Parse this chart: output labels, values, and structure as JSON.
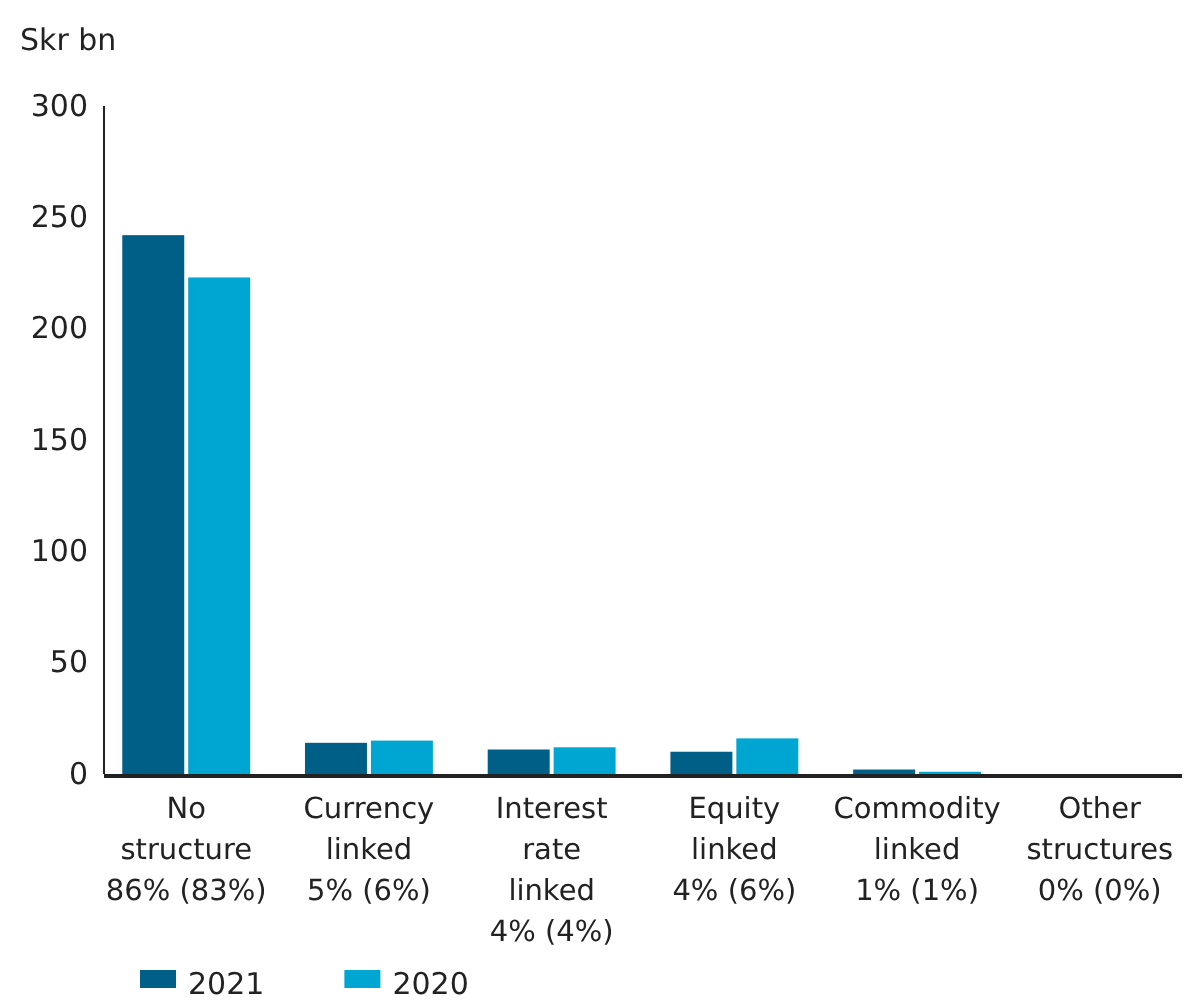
{
  "chart_data": {
    "type": "bar",
    "ylabel": "Skr bn",
    "categories": [
      "No\nstructure\n86% (83%)",
      "Currency\nlinked\n5% (6%)",
      "Interest\nrate\nlinked\n4% (4%)",
      "Equity\nlinked\n4% (6%)",
      "Commodity\nlinked\n1% (1%)",
      "Other\nstructures\n0% (0%)"
    ],
    "series": [
      {
        "name": "2021",
        "color": "#005f87",
        "values": [
          242,
          14,
          11,
          10,
          2,
          0
        ]
      },
      {
        "name": "2020",
        "color": "#00a6d2",
        "values": [
          223,
          15,
          12,
          16,
          1,
          0
        ]
      }
    ],
    "ylim": [
      0,
      300
    ],
    "yticks": [
      0,
      50,
      100,
      150,
      200,
      250,
      300
    ],
    "grid": false,
    "legend": "bottom left"
  }
}
